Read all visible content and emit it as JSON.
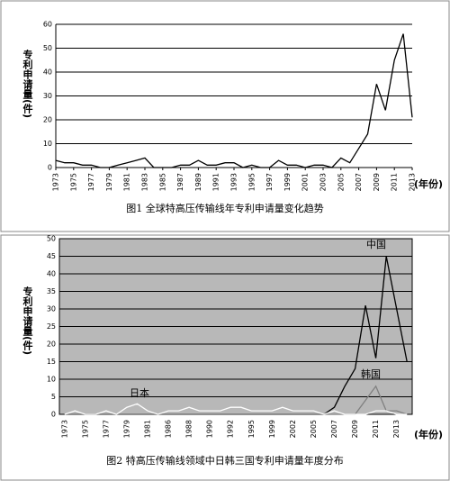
{
  "chart_data": [
    {
      "type": "line",
      "caption": "图1 全球特高压传输线年专利申请量变化趋势",
      "y_label": "专利申请量(件)",
      "x_label": "(年份)",
      "x": [
        1973,
        1974,
        1975,
        1976,
        1977,
        1978,
        1979,
        1980,
        1981,
        1982,
        1983,
        1984,
        1985,
        1986,
        1987,
        1988,
        1989,
        1990,
        1991,
        1992,
        1993,
        1994,
        1995,
        1996,
        1997,
        1998,
        1999,
        2000,
        2001,
        2002,
        2003,
        2004,
        2005,
        2006,
        2007,
        2008,
        2009,
        2010,
        2011,
        2012,
        2013
      ],
      "series": [
        {
          "color": "#000000",
          "values": [
            3,
            2,
            2,
            1,
            1,
            0,
            0,
            1,
            2,
            3,
            4,
            0,
            0,
            0,
            1,
            1,
            3,
            1,
            1,
            2,
            2,
            0,
            1,
            0,
            0,
            3,
            1,
            1,
            0,
            1,
            1,
            0,
            4,
            2,
            8,
            14,
            35,
            24,
            45,
            56,
            21
          ]
        }
      ],
      "xlim": [
        1973,
        2013
      ],
      "xticks": [
        1973,
        1975,
        1977,
        1979,
        1981,
        1983,
        1985,
        1987,
        1989,
        1991,
        1993,
        1995,
        1997,
        1999,
        2001,
        2003,
        2005,
        2007,
        2009,
        2011,
        2013
      ],
      "ylim": [
        0,
        60
      ],
      "yticks": [
        0,
        10,
        20,
        30,
        40,
        50,
        60
      ],
      "grid": true,
      "background": "#ffffff"
    },
    {
      "type": "line",
      "caption": "图2 特高压传输线领域中日韩三国专利申请量年度分布",
      "y_label": "专利申请量(件)",
      "x_label": "(年份)",
      "categories": [
        "1973",
        null,
        "1975",
        null,
        "1977",
        null,
        "1979",
        null,
        "1981",
        null,
        "1986",
        null,
        "1988",
        null,
        "1990",
        null,
        "1992",
        null,
        "1995",
        null,
        "1999",
        null,
        "2002",
        null,
        "2005",
        null,
        "2007",
        null,
        "2009",
        null,
        "2011",
        null,
        "2013",
        null
      ],
      "series": [
        {
          "name": "中国",
          "color": "#000000",
          "values": [
            0,
            0,
            0,
            0,
            0,
            0,
            0,
            0,
            0,
            0,
            0,
            0,
            0,
            0,
            0,
            0,
            0,
            0,
            0,
            0,
            0,
            0,
            0,
            0,
            0,
            0,
            2,
            8,
            13,
            31,
            16,
            45,
            30,
            15
          ]
        },
        {
          "name": "韩国",
          "color": "#7f7f7f",
          "values": [
            0,
            0,
            0,
            0,
            0,
            0,
            0,
            0,
            0,
            0,
            0,
            0,
            0,
            0,
            0,
            0,
            0,
            0,
            0,
            0,
            0,
            0,
            0,
            0,
            0,
            0,
            0,
            0,
            0,
            4,
            8,
            1,
            1,
            0
          ]
        },
        {
          "name": "日本",
          "color": "#ffffff",
          "values": [
            0,
            1,
            0,
            0,
            1,
            0,
            2,
            3,
            1,
            0,
            1,
            1,
            2,
            1,
            1,
            1,
            2,
            2,
            1,
            1,
            1,
            2,
            1,
            1,
            1,
            0,
            1,
            0,
            0,
            0,
            1,
            1,
            0,
            0
          ]
        }
      ],
      "ylim": [
        0,
        50
      ],
      "yticks": [
        0,
        5,
        10,
        15,
        20,
        25,
        30,
        35,
        40,
        45,
        50
      ],
      "grid": true,
      "background": "#b8b8b8"
    }
  ]
}
